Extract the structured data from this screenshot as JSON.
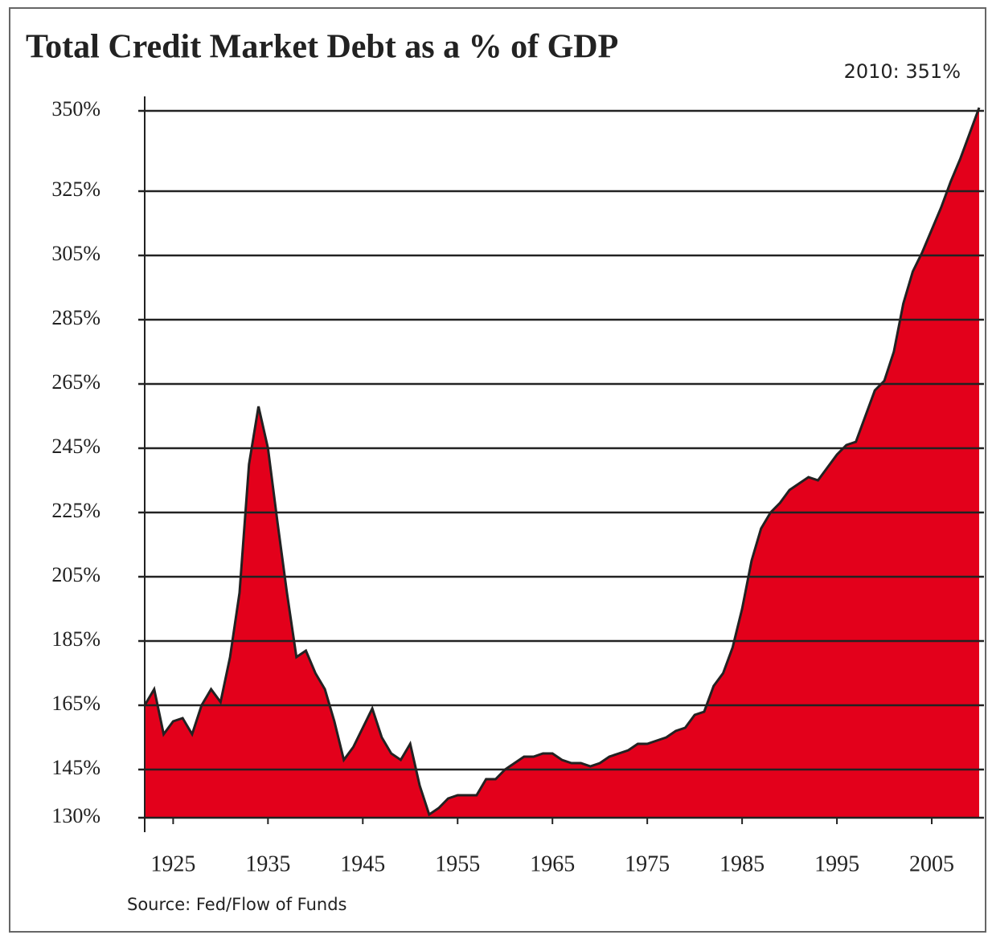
{
  "chart_data": {
    "type": "area",
    "title": "Total Credit Market Debt as a % of GDP",
    "annotation": "2010: 351%",
    "source": "Source: Fed/Flow of Funds",
    "x": [
      1922,
      1923,
      1924,
      1925,
      1926,
      1927,
      1928,
      1929,
      1930,
      1931,
      1932,
      1933,
      1934,
      1935,
      1936,
      1937,
      1938,
      1939,
      1940,
      1941,
      1942,
      1943,
      1944,
      1945,
      1946,
      1947,
      1948,
      1949,
      1950,
      1951,
      1952,
      1953,
      1954,
      1955,
      1956,
      1957,
      1958,
      1959,
      1960,
      1961,
      1962,
      1963,
      1964,
      1965,
      1966,
      1967,
      1968,
      1969,
      1970,
      1971,
      1972,
      1973,
      1974,
      1975,
      1976,
      1977,
      1978,
      1979,
      1980,
      1981,
      1982,
      1983,
      1984,
      1985,
      1986,
      1987,
      1988,
      1989,
      1990,
      1991,
      1992,
      1993,
      1994,
      1995,
      1996,
      1997,
      1998,
      1999,
      2000,
      2001,
      2002,
      2003,
      2004,
      2005,
      2006,
      2007,
      2008,
      2009,
      2010
    ],
    "values": [
      165,
      170,
      156,
      160,
      161,
      156,
      165,
      170,
      166,
      180,
      200,
      240,
      258,
      245,
      222,
      200,
      180,
      182,
      175,
      170,
      160,
      148,
      152,
      158,
      164,
      155,
      150,
      148,
      153,
      140,
      131,
      133,
      136,
      137,
      137,
      137,
      142,
      142,
      145,
      147,
      149,
      149,
      150,
      150,
      148,
      147,
      147,
      146,
      147,
      149,
      150,
      151,
      153,
      153,
      154,
      155,
      157,
      158,
      162,
      163,
      171,
      175,
      183,
      195,
      210,
      220,
      225,
      228,
      232,
      234,
      236,
      235,
      239,
      243,
      246,
      247,
      255,
      263,
      266,
      275,
      290,
      300,
      306,
      313,
      320,
      328,
      335,
      343,
      351
    ],
    "color": "#e3001b",
    "line_color": "#222222",
    "xlim": [
      1922,
      2010
    ],
    "xticks": [
      1925,
      1935,
      1945,
      1955,
      1965,
      1975,
      1985,
      1995,
      2005
    ],
    "ylim": [
      130,
      352
    ],
    "yticks": [
      {
        "value": 130,
        "label": "130%"
      },
      {
        "value": 145,
        "label": "145%"
      },
      {
        "value": 165,
        "label": "165%"
      },
      {
        "value": 185,
        "label": "185%"
      },
      {
        "value": 205,
        "label": "205%"
      },
      {
        "value": 225,
        "label": "225%"
      },
      {
        "value": 245,
        "label": "245%"
      },
      {
        "value": 265,
        "label": "265%"
      },
      {
        "value": 285,
        "label": "285%"
      },
      {
        "value": 305,
        "label": "305%"
      },
      {
        "value": 325,
        "label": "325%"
      },
      {
        "value": 350,
        "label": "350%"
      }
    ],
    "grid": true
  }
}
